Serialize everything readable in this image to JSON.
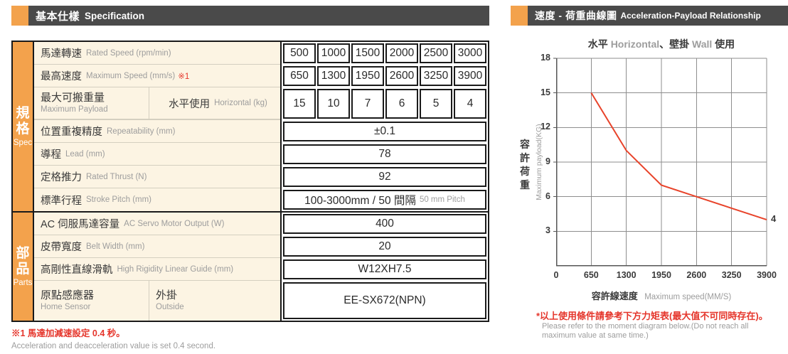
{
  "left_header": {
    "title_zh": "基本仕樣",
    "title_en": "Specification"
  },
  "right_header": {
    "title_zh": "速度 - 荷重曲線圖",
    "title_en": "Acceleration-Payload Relationship"
  },
  "sidebar": {
    "spec_zh": [
      "規",
      "格"
    ],
    "spec_en": "Spec",
    "parts_zh": [
      "部",
      "品"
    ],
    "parts_en": "Parts"
  },
  "table": {
    "rated_speed": {
      "zh": "馬達轉速",
      "en": "Rated Speed (rpm/min)",
      "values": [
        "500",
        "1000",
        "1500",
        "2000",
        "2500",
        "3000"
      ]
    },
    "max_speed": {
      "zh": "最高速度",
      "en": "Maximum Speed (mm/s)",
      "note_ref": "※1",
      "values": [
        "650",
        "1300",
        "1950",
        "2600",
        "3250",
        "3900"
      ]
    },
    "max_payload": {
      "zh": "最大可搬重量",
      "en": "Maximum Payload",
      "sub_zh": "水平使用",
      "sub_en": "Horizontal (kg)",
      "values": [
        "15",
        "10",
        "7",
        "6",
        "5",
        "4"
      ]
    },
    "repeatability": {
      "zh": "位置重複精度",
      "en": "Repeatability (mm)",
      "value": "±0.1"
    },
    "lead": {
      "zh": "導程",
      "en": "Lead (mm)",
      "value": "78"
    },
    "rated_thrust": {
      "zh": "定格推力",
      "en": "Rated Thrust (N)",
      "value": "92"
    },
    "stroke_pitch": {
      "zh": "標準行程",
      "en": "Stroke Pitch (mm)",
      "value": "100-3000mm / 50 間隔",
      "value_suffix": "50 mm Pitch"
    },
    "servo_output": {
      "zh": "AC 伺服馬達容量",
      "en": "AC Servo Motor Output (W)",
      "value": "400"
    },
    "belt_width": {
      "zh": "皮帶寬度",
      "en": "Belt Width (mm)",
      "value": "20"
    },
    "linear_guide": {
      "zh": "高剛性直線滑軌",
      "en": "High Rigidity Linear Guide (mm)",
      "value": "W12XH7.5"
    },
    "home_sensor": {
      "zh": "原點感應器",
      "en": "Home Sensor",
      "sub_zh": "外掛",
      "sub_en": "Outside",
      "value": "EE-SX672(NPN)"
    }
  },
  "footnote_left": {
    "zh": "※1 馬達加減速設定 0.4 秒。",
    "en": "Acceleration and deacceleration value is set 0.4 second."
  },
  "chart_title": {
    "s0": "水平 ",
    "s1": "Horizontal",
    "s2": "、壁掛 ",
    "s3": "Wall",
    "s4": " 使用"
  },
  "chart_data": {
    "type": "line",
    "title": "水平 Horizontal、壁掛 Wall 使用",
    "x": [
      650,
      1300,
      1950,
      2600,
      3250,
      3900
    ],
    "y": [
      15,
      10,
      7,
      6,
      5,
      4
    ],
    "x_ticks": [
      0,
      650,
      1300,
      1950,
      2600,
      3250,
      3900
    ],
    "y_ticks": [
      3,
      6,
      9,
      12,
      15,
      18
    ],
    "xlim": [
      0,
      3900
    ],
    "ylim": [
      0,
      18
    ],
    "end_label": "4",
    "xlabel_zh": "容許線速度",
    "xlabel_en": "Maximum speed(MM/S)",
    "ylabel_zh": [
      "容",
      "許",
      "荷",
      "重"
    ],
    "ylabel_en": "Maximum payload(KG)",
    "line_color": "#e8432a",
    "grid": true,
    "legend": "none"
  },
  "chart_note": {
    "zh": "*以上使用條件請參考下方力矩表(最大值不可同時存在)。",
    "en": "Please refer to the moment diagram below.(Do not reach all maximum value at same time.)"
  },
  "colors": {
    "accent_orange": "#f3a24c",
    "header_gray": "#4a4a4a",
    "label_bg": "#fcf4e3",
    "border_black": "#1a1a1a",
    "text_dark": "#3a3a3a",
    "text_gray": "#9d9d9d",
    "accent_red": "#e5352b",
    "grid_gray": "#8e8e8e"
  }
}
